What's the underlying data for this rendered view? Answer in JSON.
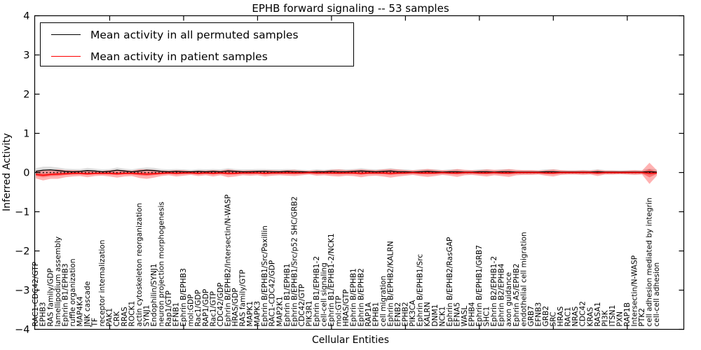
{
  "chart_data": {
    "type": "line",
    "title": "EPHB forward signaling -- 53 samples",
    "xlabel": "Cellular Entities",
    "ylabel": "Inferred Activity",
    "ylim": [
      -4,
      4
    ],
    "yticks": [
      4,
      3,
      2,
      1,
      0,
      -1,
      -2,
      -3,
      -4
    ],
    "grid": false,
    "legend_position": "upper left",
    "x_major_tick_interval": 10,
    "zero_line": {
      "style": "dotted",
      "color": "#000000",
      "y": 0
    },
    "categories": [
      "RAC1-CDC42/GTP",
      "EPHB3",
      "RAS family/GDP",
      "lamellipodium assembly",
      "Ephrin B1/EPHB3",
      "ruffle organization",
      "MAP4K4",
      "JNK cascade",
      "TF",
      "receptor internalization",
      "PAK1",
      "CRK",
      "RRAS",
      "ROCK1",
      "actin cytoskeleton reorganization",
      "SYNJ1",
      "Endophilin/SYNJ1",
      "neuron projection morphogenesis",
      "Rap1/GTP",
      "EFNB1",
      "Ephrin B/EPHB3",
      "mol:GDP",
      "Rac1/GDP",
      "RAP1/GDP",
      "Rac1/GTP",
      "CDC42/GDP",
      "Ephrin B/EPHB2/Intersectin/N-WASP",
      "HRAS/GDP",
      "RAS family/GTP",
      "MAPK1",
      "MAPK3",
      "Ephrin B/EPHB1/Src/Paxillin",
      "RAC1-CDC42/GDP",
      "MAP2K1",
      "Ephrin B1/EPHB1",
      "Ephrin B/EPHB1/Src/p52 SHC/GRB2",
      "CDC42/GTP",
      "PIK3R1",
      "Ephrin B1/EPHB1-2",
      "cell-cell signaling",
      "Ephrin B1/EPHB1-2/NCK1",
      "mol:GTP",
      "HRAS/GTP",
      "Ephrin B/EPHB1",
      "Ephrin B/EPHB2",
      "RAP1A",
      "EPHB1",
      "cell migration",
      "Ephrin B/EPHB2/KALRN",
      "EFNB2",
      "EPHB2",
      "PIK3CA",
      "Ephrin B/EPHB1/Src",
      "KALRN",
      "DNM1",
      "NCK1",
      "Ephrin B/EPHB2/RasGAP",
      "EFNA5",
      "WASL",
      "EPHB4",
      "Ephrin B/EPHB1/GRB7",
      "SHC1",
      "Ephrin B2/EPHB1-2",
      "Ephrin B2/EPHB4",
      "axon guidance",
      "Ephrin A5/EPHB2",
      "endothelial cell migration",
      "GRB7",
      "EFNB3",
      "GRB2",
      "SRC",
      "HRAS",
      "RAC1",
      "NRAS",
      "CDC42",
      "KRAS",
      "RASA1",
      "PI3K",
      "ITSN1",
      "PXN",
      "RAP1B",
      "Intersectin/N-WASP",
      "PTK2",
      "cell adhesion mediated by integrin",
      "cell-cell adhesion"
    ],
    "series": [
      {
        "name": "Mean activity in all permuted samples",
        "color": "#000000",
        "band_color": "#999999",
        "values": [
          0.03,
          0.06,
          0.07,
          0.05,
          0.03,
          0.02,
          0.03,
          0.05,
          0.04,
          0.02,
          0.03,
          0.06,
          0.04,
          0.02,
          0.04,
          0.06,
          0.05,
          0.03,
          0.02,
          0.03,
          0.02,
          0.02,
          0.03,
          0.02,
          0.03,
          0.02,
          0.04,
          0.03,
          0.02,
          0.02,
          0.03,
          0.03,
          0.02,
          0.02,
          0.03,
          0.02,
          0.02,
          0.01,
          0.02,
          0.02,
          0.03,
          0.02,
          0.02,
          0.03,
          0.04,
          0.03,
          0.02,
          0.03,
          0.04,
          0.02,
          0.02,
          0.01,
          0.02,
          0.03,
          0.02,
          0.01,
          0.02,
          0.02,
          0.01,
          0.01,
          0.02,
          0.02,
          0.01,
          0.02,
          0.02,
          0.01,
          0.01,
          0.01,
          0.01,
          0.02,
          0.02,
          0.01,
          0.01,
          0.01,
          0.01,
          0.01,
          0.02,
          0.01,
          0.01,
          0.01,
          0.01,
          0.01,
          0.01,
          0.02,
          0.01
        ],
        "band_widths": [
          0.08,
          0.09,
          0.08,
          0.08,
          0.07,
          0.07,
          0.06,
          0.07,
          0.06,
          0.06,
          0.06,
          0.07,
          0.06,
          0.06,
          0.07,
          0.07,
          0.07,
          0.06,
          0.06,
          0.06,
          0.06,
          0.05,
          0.06,
          0.06,
          0.06,
          0.06,
          0.07,
          0.06,
          0.06,
          0.06,
          0.06,
          0.06,
          0.06,
          0.06,
          0.06,
          0.06,
          0.05,
          0.05,
          0.06,
          0.05,
          0.06,
          0.06,
          0.06,
          0.06,
          0.07,
          0.06,
          0.06,
          0.06,
          0.07,
          0.06,
          0.06,
          0.05,
          0.06,
          0.06,
          0.06,
          0.05,
          0.06,
          0.06,
          0.05,
          0.05,
          0.06,
          0.06,
          0.05,
          0.06,
          0.06,
          0.05,
          0.05,
          0.05,
          0.05,
          0.06,
          0.06,
          0.05,
          0.05,
          0.05,
          0.05,
          0.05,
          0.06,
          0.05,
          0.05,
          0.05,
          0.05,
          0.05,
          0.05,
          0.08,
          0.06
        ]
      },
      {
        "name": "Mean activity in patient samples",
        "color": "#ff0000",
        "band_color": "#ff0000",
        "values": [
          -0.05,
          -0.07,
          -0.05,
          -0.04,
          -0.03,
          -0.02,
          -0.02,
          -0.03,
          -0.02,
          -0.02,
          -0.02,
          -0.03,
          -0.02,
          -0.02,
          -0.03,
          -0.04,
          -0.03,
          -0.02,
          -0.01,
          -0.02,
          -0.01,
          -0.01,
          -0.02,
          -0.01,
          -0.02,
          -0.01,
          -0.02,
          -0.02,
          -0.01,
          -0.01,
          -0.01,
          -0.02,
          -0.01,
          -0.01,
          -0.01,
          -0.01,
          -0.01,
          0,
          -0.01,
          -0.01,
          -0.01,
          -0.01,
          -0.01,
          -0.01,
          -0.02,
          -0.01,
          -0.01,
          -0.01,
          -0.02,
          -0.01,
          -0.01,
          0,
          -0.01,
          -0.01,
          -0.01,
          0,
          -0.01,
          -0.01,
          0,
          0,
          -0.01,
          -0.01,
          0,
          -0.01,
          -0.01,
          0,
          0,
          0,
          0,
          -0.01,
          -0.01,
          0,
          0,
          0,
          0,
          0,
          -0.01,
          0,
          0,
          0,
          0,
          0,
          0,
          -0.02,
          -0.01
        ],
        "band_widths": [
          0.1,
          0.13,
          0.11,
          0.12,
          0.09,
          0.08,
          0.07,
          0.09,
          0.07,
          0.06,
          0.08,
          0.1,
          0.08,
          0.07,
          0.11,
          0.12,
          0.1,
          0.07,
          0.06,
          0.08,
          0.07,
          0.05,
          0.07,
          0.06,
          0.08,
          0.06,
          0.1,
          0.08,
          0.06,
          0.07,
          0.06,
          0.08,
          0.07,
          0.06,
          0.07,
          0.08,
          0.06,
          0.05,
          0.07,
          0.06,
          0.08,
          0.09,
          0.07,
          0.08,
          0.1,
          0.08,
          0.07,
          0.09,
          0.11,
          0.09,
          0.07,
          0.06,
          0.08,
          0.1,
          0.08,
          0.06,
          0.07,
          0.1,
          0.07,
          0.06,
          0.07,
          0.09,
          0.07,
          0.08,
          0.1,
          0.07,
          0.06,
          0.06,
          0.05,
          0.07,
          0.09,
          0.06,
          0.05,
          0.05,
          0.06,
          0.05,
          0.08,
          0.05,
          0.05,
          0.04,
          0.05,
          0.06,
          0.05,
          0.27,
          0.07
        ]
      }
    ]
  }
}
